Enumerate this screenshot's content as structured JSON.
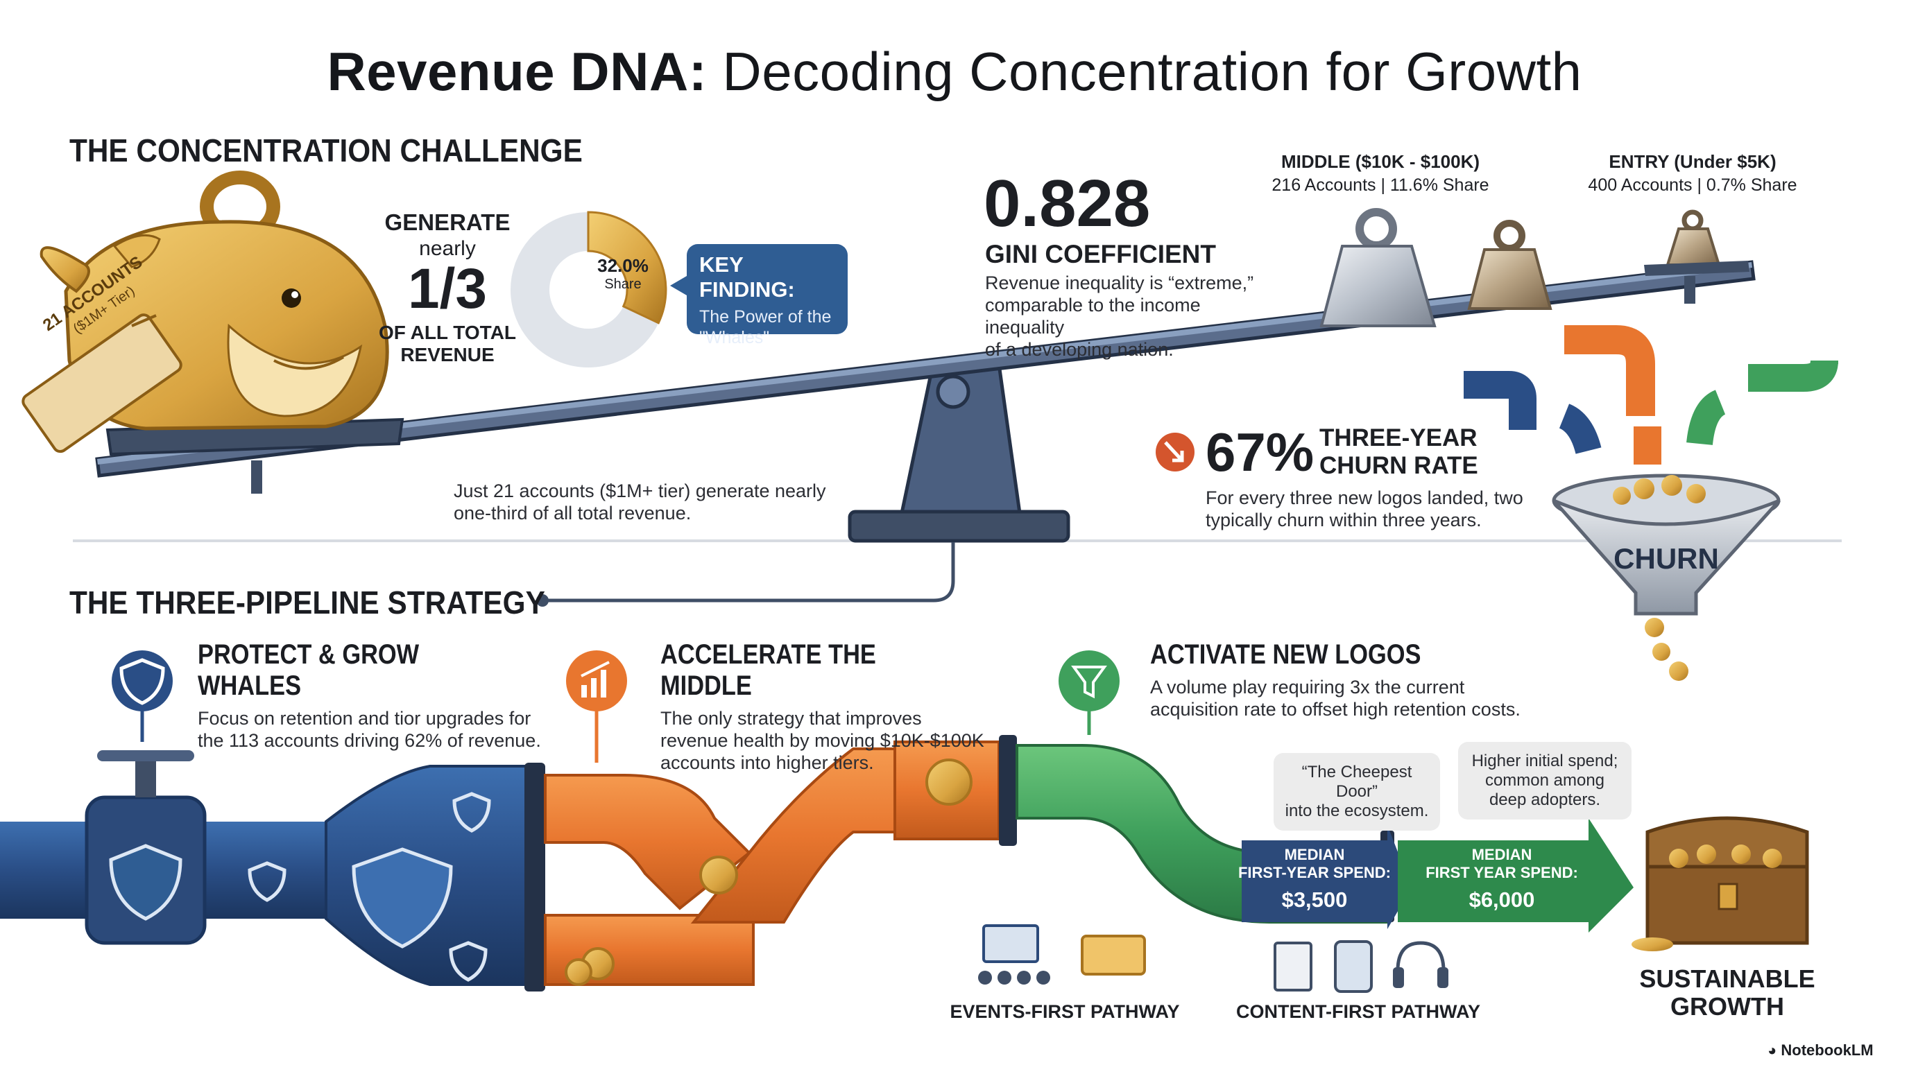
{
  "title": {
    "bold": "Revenue DNA:",
    "regular": " Decoding Concentration for Growth"
  },
  "concentration": {
    "heading": "THE CONCENTRATION CHALLENGE",
    "whale_tag": {
      "line1": "21 ACCOUNTS",
      "line2": "($1M+ Tier)"
    },
    "generate": {
      "line1": "GENERATE",
      "line2": "nearly",
      "fraction": "1/3",
      "line3": "OF ALL TOTAL",
      "line4": "REVENUE"
    },
    "donut": {
      "value_label": "32.0%",
      "sub_label": "Share",
      "share_fraction": 0.32
    },
    "key_finding": {
      "title": "KEY FINDING:",
      "line1": "The Power of the",
      "line2": "\"Whales\""
    },
    "footnote": {
      "line1": "Just 21 accounts ($1M+ tier) generate nearly",
      "line2": "one-third of all total revenue."
    }
  },
  "gini": {
    "value": "0.828",
    "label": "GINI COEFFICIENT",
    "desc": [
      "Revenue inequality is “extreme,”",
      "comparable to the income inequality",
      "of a developing nation."
    ]
  },
  "tiers": [
    {
      "name": "MIDDLE ($10K - $100K)",
      "detail": "216 Accounts | 11.6% Share"
    },
    {
      "name": "ENTRY (Under $5K)",
      "detail": "400 Accounts | 0.7% Share"
    }
  ],
  "churn": {
    "value": "67%",
    "label_line1": "THREE-YEAR",
    "label_line2": "CHURN RATE",
    "desc": [
      "For every three new logos landed, two",
      "typically churn within three years."
    ],
    "funnel_label": "CHURN"
  },
  "pipeline": {
    "heading": "THE THREE-PIPELINE STRATEGY",
    "items": [
      {
        "title": "PROTECT & GROW WHALES",
        "desc": [
          "Focus on retention and tior upgrades for",
          "the 113 accounts driving 62% of revenue."
        ],
        "icon": "shield-dollar-icon"
      },
      {
        "title": "ACCELERATE THE MIDDLE",
        "desc": [
          "The only strategy that improves",
          "revenue health by moving $10K-$100K",
          "accounts into higher tiers."
        ],
        "icon": "growth-chart-icon"
      },
      {
        "title": "ACTIVATE NEW LOGOS",
        "desc": [
          "A volume play requiring 3x the current",
          "acquisition rate to offset high retention costs."
        ],
        "icon": "funnel-icon"
      }
    ],
    "callouts": [
      {
        "lines": [
          "“The Cheepest Door”",
          "into the ecosystem."
        ]
      },
      {
        "lines": [
          "Higher initial spend;",
          "common among",
          "deep adopters."
        ]
      }
    ],
    "arrows": [
      {
        "line1": "MEDIAN",
        "line2": "FIRST-YEAR SPEND:",
        "value": "$3,500"
      },
      {
        "line1": "MEDIAN",
        "line2": "FIRST YEAR SPEND:",
        "value": "$6,000"
      }
    ],
    "pathways": [
      "EVENTS-FIRST PATHWAY",
      "CONTENT-FIRST PATHWAY"
    ],
    "outcome": {
      "line1": "SUSTAINABLE",
      "line2": "GROWTH"
    }
  },
  "brand": "NotebookLM",
  "colors": {
    "navy": "#2c4a7a",
    "orange": "#e8762f",
    "green": "#3fa05c",
    "gold": "#d9a441",
    "slate": "#3f4e66"
  }
}
